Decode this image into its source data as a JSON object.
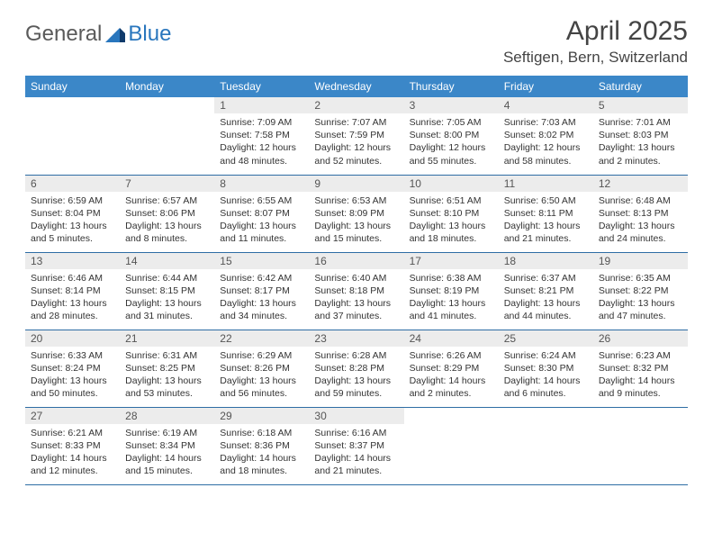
{
  "logo": {
    "text_general": "General",
    "text_blue": "Blue"
  },
  "title": "April 2025",
  "location": "Seftigen, Bern, Switzerland",
  "header_bg": "#3b87c8",
  "header_fg": "#ffffff",
  "daynum_bg": "#ececec",
  "border_color": "#2e6da4",
  "text_color": "#333333",
  "font_family": "Arial",
  "cell_fontsize": 10.5,
  "daynum_fontsize": 12,
  "header_fontsize": 12,
  "columns": [
    "Sunday",
    "Monday",
    "Tuesday",
    "Wednesday",
    "Thursday",
    "Friday",
    "Saturday"
  ],
  "weeks": [
    [
      null,
      null,
      {
        "n": "1",
        "sr": "7:09 AM",
        "ss": "7:58 PM",
        "dl": "12 hours and 48 minutes."
      },
      {
        "n": "2",
        "sr": "7:07 AM",
        "ss": "7:59 PM",
        "dl": "12 hours and 52 minutes."
      },
      {
        "n": "3",
        "sr": "7:05 AM",
        "ss": "8:00 PM",
        "dl": "12 hours and 55 minutes."
      },
      {
        "n": "4",
        "sr": "7:03 AM",
        "ss": "8:02 PM",
        "dl": "12 hours and 58 minutes."
      },
      {
        "n": "5",
        "sr": "7:01 AM",
        "ss": "8:03 PM",
        "dl": "13 hours and 2 minutes."
      }
    ],
    [
      {
        "n": "6",
        "sr": "6:59 AM",
        "ss": "8:04 PM",
        "dl": "13 hours and 5 minutes."
      },
      {
        "n": "7",
        "sr": "6:57 AM",
        "ss": "8:06 PM",
        "dl": "13 hours and 8 minutes."
      },
      {
        "n": "8",
        "sr": "6:55 AM",
        "ss": "8:07 PM",
        "dl": "13 hours and 11 minutes."
      },
      {
        "n": "9",
        "sr": "6:53 AM",
        "ss": "8:09 PM",
        "dl": "13 hours and 15 minutes."
      },
      {
        "n": "10",
        "sr": "6:51 AM",
        "ss": "8:10 PM",
        "dl": "13 hours and 18 minutes."
      },
      {
        "n": "11",
        "sr": "6:50 AM",
        "ss": "8:11 PM",
        "dl": "13 hours and 21 minutes."
      },
      {
        "n": "12",
        "sr": "6:48 AM",
        "ss": "8:13 PM",
        "dl": "13 hours and 24 minutes."
      }
    ],
    [
      {
        "n": "13",
        "sr": "6:46 AM",
        "ss": "8:14 PM",
        "dl": "13 hours and 28 minutes."
      },
      {
        "n": "14",
        "sr": "6:44 AM",
        "ss": "8:15 PM",
        "dl": "13 hours and 31 minutes."
      },
      {
        "n": "15",
        "sr": "6:42 AM",
        "ss": "8:17 PM",
        "dl": "13 hours and 34 minutes."
      },
      {
        "n": "16",
        "sr": "6:40 AM",
        "ss": "8:18 PM",
        "dl": "13 hours and 37 minutes."
      },
      {
        "n": "17",
        "sr": "6:38 AM",
        "ss": "8:19 PM",
        "dl": "13 hours and 41 minutes."
      },
      {
        "n": "18",
        "sr": "6:37 AM",
        "ss": "8:21 PM",
        "dl": "13 hours and 44 minutes."
      },
      {
        "n": "19",
        "sr": "6:35 AM",
        "ss": "8:22 PM",
        "dl": "13 hours and 47 minutes."
      }
    ],
    [
      {
        "n": "20",
        "sr": "6:33 AM",
        "ss": "8:24 PM",
        "dl": "13 hours and 50 minutes."
      },
      {
        "n": "21",
        "sr": "6:31 AM",
        "ss": "8:25 PM",
        "dl": "13 hours and 53 minutes."
      },
      {
        "n": "22",
        "sr": "6:29 AM",
        "ss": "8:26 PM",
        "dl": "13 hours and 56 minutes."
      },
      {
        "n": "23",
        "sr": "6:28 AM",
        "ss": "8:28 PM",
        "dl": "13 hours and 59 minutes."
      },
      {
        "n": "24",
        "sr": "6:26 AM",
        "ss": "8:29 PM",
        "dl": "14 hours and 2 minutes."
      },
      {
        "n": "25",
        "sr": "6:24 AM",
        "ss": "8:30 PM",
        "dl": "14 hours and 6 minutes."
      },
      {
        "n": "26",
        "sr": "6:23 AM",
        "ss": "8:32 PM",
        "dl": "14 hours and 9 minutes."
      }
    ],
    [
      {
        "n": "27",
        "sr": "6:21 AM",
        "ss": "8:33 PM",
        "dl": "14 hours and 12 minutes."
      },
      {
        "n": "28",
        "sr": "6:19 AM",
        "ss": "8:34 PM",
        "dl": "14 hours and 15 minutes."
      },
      {
        "n": "29",
        "sr": "6:18 AM",
        "ss": "8:36 PM",
        "dl": "14 hours and 18 minutes."
      },
      {
        "n": "30",
        "sr": "6:16 AM",
        "ss": "8:37 PM",
        "dl": "14 hours and 21 minutes."
      },
      null,
      null,
      null
    ]
  ],
  "labels": {
    "sunrise": "Sunrise:",
    "sunset": "Sunset:",
    "daylight": "Daylight:"
  }
}
